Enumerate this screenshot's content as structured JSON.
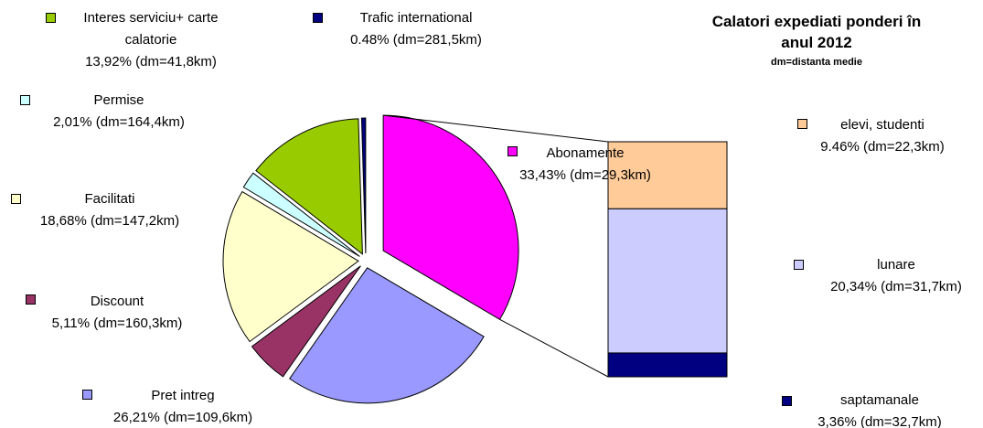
{
  "chart_data": {
    "type": "pie",
    "title": "Calatori expediati ponderi în anul 2012",
    "subtitle": "dm=distanta medie",
    "categories": [
      "Abonamente",
      "Pret intreg",
      "Discount",
      "Facilitati",
      "Permise",
      "Interes serviciu+ carte calatorie",
      "Trafic international"
    ],
    "values": [
      33.43,
      26.21,
      5.11,
      18.68,
      2.01,
      13.92,
      0.48
    ],
    "value_labels": [
      "33,43% (dm=29,3km)",
      "26,21% (dm=109,6km)",
      "5,11% (dm=160,3km)",
      "18,68% (dm=147,2km)",
      "2,01% (dm=164,4km)",
      "13,92% (dm=41,8km)",
      "0.48% (dm=281,5km)"
    ],
    "colors": [
      "#ff00ff",
      "#9999ff",
      "#993366",
      "#ffffcc",
      "#ccffff",
      "#99cc00",
      "#000080"
    ],
    "breakdown": {
      "categories": [
        "elevi, studenti",
        "lunare",
        "saptamanale"
      ],
      "values": [
        9.46,
        20.34,
        3.36
      ],
      "value_labels": [
        "9.46% (dm=22,3km)",
        "20,34% (dm=31,7km)",
        "3,36% (dm=32,7km)"
      ],
      "colors": [
        "#ffcc99",
        "#ccccff",
        "#000080"
      ]
    }
  }
}
